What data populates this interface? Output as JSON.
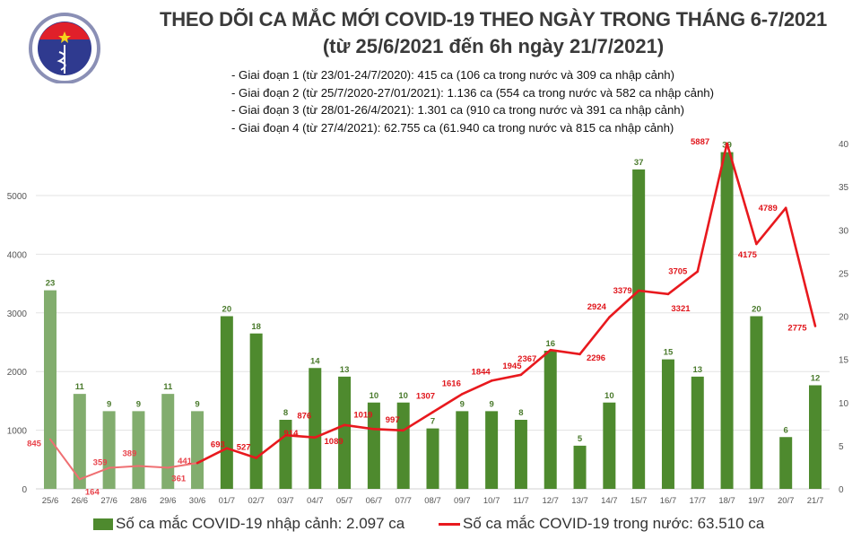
{
  "header": {
    "title": "THEO DÕI CA MẮC MỚI COVID-19 THEO NGÀY TRONG THÁNG 6-7/2021",
    "subtitle": "(từ 25/6/2021 đến 6h ngày 21/7/2021)",
    "phases": [
      "- Giai đoạn 1 (từ 23/01-24/7/2020): 415 ca (106 ca trong nước và 309 ca nhập cảnh)",
      "- Giai đoạn 2 (từ 25/7/2020-27/01/2021): 1.136 ca (554 ca trong nước và 582 ca nhập cảnh)",
      "- Giai đoạn 3 (từ 28/01-26/4/2021): 1.301 ca (910 ca trong nước và 391 ca nhập cảnh)",
      "- Giai đoạn 4 (từ 27/4/2021): 62.755 ca (61.940 ca trong nước và 815 ca nhập cảnh)"
    ]
  },
  "logo": {
    "top_text": "BỘ Y TẾ",
    "bottom_text": "MINISTRY OF HEALTH"
  },
  "chart_data": {
    "type": "bar+line",
    "categories": [
      "25/6",
      "26/6",
      "27/6",
      "28/6",
      "29/6",
      "30/6",
      "01/7",
      "02/7",
      "03/7",
      "04/7",
      "05/7",
      "06/7",
      "07/7",
      "08/7",
      "09/7",
      "10/7",
      "11/7",
      "12/7",
      "13/7",
      "14/7",
      "15/7",
      "16/7",
      "17/7",
      "18/7",
      "19/7",
      "20/7",
      "21/7"
    ],
    "series": [
      {
        "name": "Số ca mắc COVID-19 nhập cảnh: 2.097 ca",
        "type": "bar",
        "axis": "right",
        "values": [
          23,
          11,
          9,
          9,
          11,
          9,
          20,
          18,
          8,
          14,
          13,
          10,
          10,
          7,
          9,
          9,
          8,
          16,
          5,
          10,
          37,
          15,
          13,
          39,
          20,
          6,
          12
        ],
        "color": "#4e8a2e",
        "color_june": "#82ad6e"
      },
      {
        "name": "Số ca mắc COVID-19 trong nước: 63.510 ca",
        "type": "line",
        "axis": "left",
        "values": [
          845,
          164,
          359,
          389,
          361,
          441,
          693,
          527,
          914,
          876,
          1089,
          1019,
          997,
          1307,
          1616,
          1844,
          1945,
          2367,
          2296,
          2924,
          3379,
          3321,
          3705,
          5887,
          4175,
          4789,
          2775
        ],
        "color": "#e8191e",
        "color_june": "#ef6f72"
      }
    ],
    "left_axis": {
      "ylim": [
        0,
        5887
      ],
      "ticks": [
        0,
        1000,
        2000,
        3000,
        4000,
        5000
      ]
    },
    "right_axis": {
      "ylim": [
        0,
        40
      ],
      "ticks": [
        0,
        5,
        10,
        15,
        20,
        25,
        30,
        35,
        40
      ]
    },
    "grid": true,
    "legend": "bottom"
  }
}
